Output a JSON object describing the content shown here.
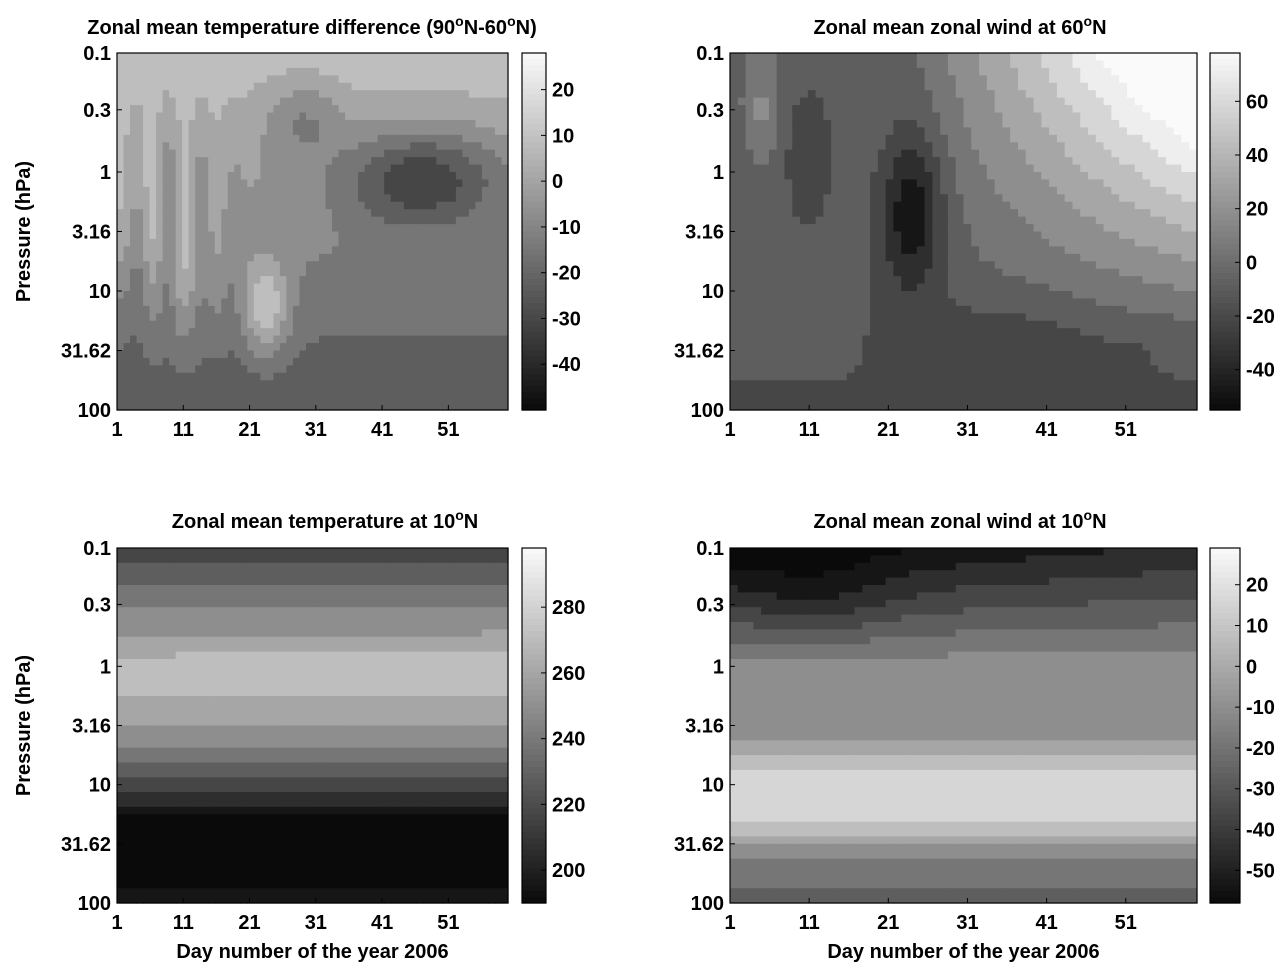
{
  "chart_data": [
    {
      "type": "heatmap",
      "title": "Zonal mean temperature difference (90",
      "title_parts": [
        "Zonal mean temperature difference (90",
        "o",
        "N-60",
        "o",
        "N)"
      ],
      "xlabel": "",
      "ylabel": "Pressure (hPa)",
      "x_ticks": [
        "1",
        "11",
        "21",
        "31",
        "41",
        "51"
      ],
      "y_ticks": [
        "0.1",
        "0.3",
        "1",
        "3.16",
        "10",
        "31.62",
        "100"
      ],
      "y_scale": "log",
      "xlim": [
        1,
        60
      ],
      "ylim": [
        100,
        0.1
      ],
      "colorbar": {
        "ticks": [
          "20",
          "10",
          "0",
          "-10",
          "-20",
          "-30",
          "-40"
        ],
        "range": [
          -50,
          28
        ]
      },
      "field": "zonal mean temperature difference (K)",
      "anomaly_note": "warm anomaly near day 23 at 10-30 hPa; cold core near days 45-58 at 1 hPa"
    },
    {
      "type": "heatmap",
      "title_parts": [
        "Zonal mean zonal wind at 60",
        "o",
        "N"
      ],
      "xlabel": "",
      "ylabel": "",
      "x_ticks": [
        "1",
        "11",
        "21",
        "31",
        "41",
        "51"
      ],
      "y_ticks": [
        "0.1",
        "0.3",
        "1",
        "3.16",
        "10",
        "31.62",
        "100"
      ],
      "y_scale": "log",
      "xlim": [
        1,
        60
      ],
      "ylim": [
        100,
        0.1
      ],
      "colorbar": {
        "ticks": [
          "60",
          "40",
          "20",
          "0",
          "-20",
          "-40"
        ],
        "range": [
          -55,
          78
        ]
      }
    },
    {
      "type": "heatmap",
      "title_parts": [
        "Zonal mean temperature at 10",
        "o",
        "N"
      ],
      "xlabel": "Day number of the year 2006",
      "ylabel": "Pressure (hPa)",
      "x_ticks": [
        "1",
        "11",
        "21",
        "31",
        "41",
        "51"
      ],
      "y_ticks": [
        "0.1",
        "0.3",
        "1",
        "3.16",
        "10",
        "31.62",
        "100"
      ],
      "y_scale": "log",
      "xlim": [
        1,
        60
      ],
      "ylim": [
        100,
        0.1
      ],
      "colorbar": {
        "ticks": [
          "280",
          "260",
          "240",
          "220",
          "200"
        ],
        "range": [
          190,
          298
        ]
      }
    },
    {
      "type": "heatmap",
      "title_parts": [
        "Zonal mean zonal wind at 10",
        "o",
        "N"
      ],
      "xlabel": "Day number of the year 2006",
      "ylabel": "",
      "x_ticks": [
        "1",
        "11",
        "21",
        "31",
        "41",
        "51"
      ],
      "y_ticks": [
        "0.1",
        "0.3",
        "1",
        "3.16",
        "10",
        "31.62",
        "100"
      ],
      "y_scale": "log",
      "xlim": [
        1,
        60
      ],
      "ylim": [
        100,
        0.1
      ],
      "colorbar": {
        "ticks": [
          "20",
          "10",
          "0",
          "-10",
          "-20",
          "-30",
          "-40",
          "-50"
        ],
        "range": [
          -58,
          29
        ]
      }
    }
  ]
}
